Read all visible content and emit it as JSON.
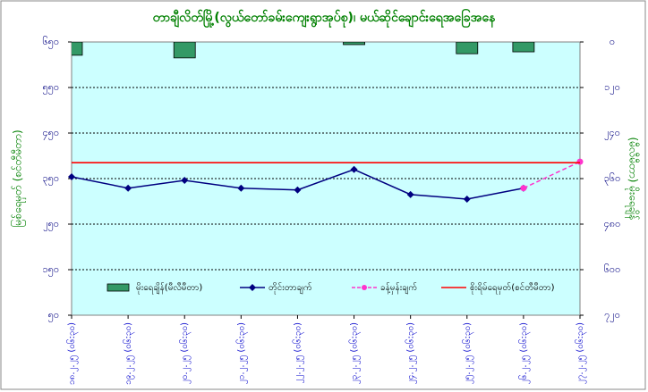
{
  "chart_data": {
    "type": "combo",
    "title": "တာချီလိတ်မြို့(လွယ်တော်ခမ်းကျေးရွာအုပ်စု)၊ မယ်ဆိုင်ချောင်းရေအခြေအနေ",
    "y_label": "မြစ်ရေမှတ် (စင်တီမီတာ)",
    "y2_label": "(မီလီမီတာ) မိုးရေချိန်",
    "categories": [
      "၁၈.၂.၂၅ (၀၆:၃၀)",
      "၁၉.၂.၂၅ (၀၆:၃၀)",
      "၂၀.၂.၂၅ (၀၆:၃၀)",
      "၂၁.၂.၂၅ (၀၆:၃၀)",
      "၂၂.၂.၂၅ (၀၆:၃၀)",
      "၂၃.၂.၂၅ (၀၆:၃၀)",
      "၂၄.၂.၂၅ (၀၆:၃၀)",
      "၂၅.၂.၂၅ (၀၆:၃၀)",
      "၂၆.၂.၂၅ (၀၆:၃၀)",
      "၂၇.၂.၂၅ (၀၆:၃၀)"
    ],
    "ylim": [
      50,
      650
    ],
    "yticks": [
      {
        "value": 50,
        "label": "၅၀"
      },
      {
        "value": 150,
        "label": "၁၅၀"
      },
      {
        "value": 250,
        "label": "၂၅၀"
      },
      {
        "value": 350,
        "label": "၃၅၀"
      },
      {
        "value": 450,
        "label": "၄၅၀"
      },
      {
        "value": 550,
        "label": "၅၅၀"
      },
      {
        "value": 650,
        "label": "၆၅၀"
      }
    ],
    "y2lim": [
      0,
      720
    ],
    "y2_reversed": true,
    "y2ticks": [
      {
        "value": 0,
        "label": "၀"
      },
      {
        "value": 120,
        "label": "၁၂၀"
      },
      {
        "value": 240,
        "label": "၂၄၀"
      },
      {
        "value": 360,
        "label": "၃၆၀"
      },
      {
        "value": 480,
        "label": "၄၈၀"
      },
      {
        "value": 600,
        "label": "၆၀၀"
      },
      {
        "value": 720,
        "label": "၇၂၀"
      }
    ],
    "grid": true,
    "background": "#ccffff",
    "series": [
      {
        "name": "မိုးရေချိန်(မီလီမီတာ)",
        "type": "bar",
        "axis": "y2",
        "color": "#339966",
        "values": [
          35,
          0,
          42,
          0,
          0,
          7,
          0,
          31,
          26,
          0
        ]
      },
      {
        "name": "တိုင်းတာချက်",
        "type": "line",
        "color": "#000080",
        "marker": "diamond",
        "values": [
          354,
          329,
          346,
          329,
          325,
          370,
          315,
          305,
          329,
          null
        ]
      },
      {
        "name": "ခန့်မှန်းချက်",
        "type": "line",
        "color": "#ff33cc",
        "marker": "circle",
        "dashed": true,
        "values": [
          null,
          null,
          null,
          null,
          null,
          null,
          null,
          null,
          329,
          387
        ]
      },
      {
        "name": "စိုးရိမ်ရေမှတ်(စင်တီမီတာ)",
        "type": "line",
        "color": "#ff0000",
        "values": [
          385,
          385,
          385,
          385,
          385,
          385,
          385,
          385,
          385,
          385
        ]
      }
    ]
  }
}
